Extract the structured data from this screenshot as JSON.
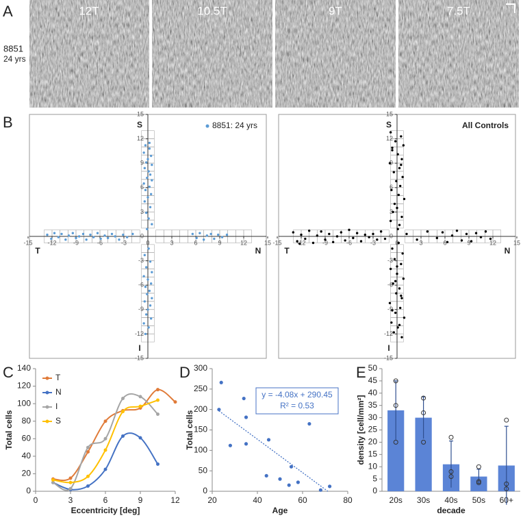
{
  "figure": {
    "panel_labels": [
      "A",
      "B",
      "C",
      "D",
      "E"
    ],
    "images": {
      "labels": [
        "12T",
        "10.5T",
        "9T",
        "7.5T"
      ],
      "subject": "8851",
      "age": "24 yrs"
    }
  },
  "chart_data": [
    {
      "type": "scatter",
      "axis_style": "cross",
      "compass": {
        "top": "S",
        "bottom": "I",
        "left": "T",
        "right": "N"
      },
      "xlim": [
        -15,
        15
      ],
      "ylim": [
        -15,
        15
      ],
      "xticks": [
        -15,
        -12,
        -9,
        -6,
        -3,
        0,
        3,
        6,
        9,
        12,
        15
      ],
      "yticks": [
        15,
        12,
        9,
        6,
        3,
        0,
        -3,
        -6,
        -9,
        -12,
        -15
      ],
      "series": [
        {
          "name": "8851: 24 yrs",
          "color": "#5b9bd5",
          "x": [
            -0.3,
            0.2,
            -0.5,
            0.4,
            0.0,
            -0.2,
            0.5,
            -0.4,
            0.1,
            0.3,
            -0.1,
            0.5,
            -0.5,
            0.2,
            -0.3,
            0.4,
            0.0,
            -0.4,
            0.3,
            -0.2,
            0.1,
            0.5,
            -0.1,
            0.2,
            0.1,
            -0.4,
            0.3,
            -0.2,
            0.5,
            -0.5,
            0.0,
            0.4,
            -0.3,
            0.2,
            -0.1,
            0.5,
            -0.4,
            0.3,
            0.0,
            -0.2,
            0.4,
            -0.5,
            0.1,
            -0.3,
            -12.6,
            -12.1,
            -11.7,
            -11.2,
            -10.8,
            -10.3,
            -9.9,
            -9.4,
            -9.0,
            -8.6,
            -8.1,
            -7.7,
            -7.2,
            -6.8,
            -6.3,
            -5.9,
            -5.4,
            -5.0,
            -4.5,
            -4.1,
            -3.6,
            -3.1,
            -2.6,
            -1.9,
            5.6,
            6.1,
            6.5,
            7.0,
            7.4,
            7.9,
            8.3,
            8.8,
            9.3,
            9.9
          ],
          "y": [
            11.2,
            10.8,
            10.3,
            9.9,
            9.5,
            9.1,
            8.8,
            8.4,
            8.0,
            7.6,
            7.2,
            6.9,
            6.5,
            6.1,
            5.7,
            5.2,
            4.8,
            4.3,
            3.6,
            2.9,
            2.2,
            1.5,
            0.9,
            11.5,
            -1.5,
            -2.3,
            -3.1,
            -3.8,
            -4.4,
            -4.9,
            -5.3,
            -5.8,
            -6.2,
            -6.7,
            -7.1,
            -7.6,
            -8.0,
            -8.5,
            -9.0,
            -9.6,
            -10.1,
            -10.7,
            -11.2,
            -12.0,
            0.2,
            -0.3,
            0.4,
            -0.1,
            0.3,
            -0.4,
            0.1,
            0.4,
            -0.2,
            0.0,
            0.3,
            -0.4,
            0.2,
            -0.1,
            0.4,
            -0.3,
            0.1,
            -0.2,
            0.3,
            0.0,
            -0.4,
            0.2,
            -0.1,
            0.3,
            0.3,
            -0.2,
            0.4,
            -0.4,
            0.1,
            0.3,
            -0.3,
            0.2,
            -0.1,
            0.2
          ]
        }
      ]
    },
    {
      "type": "scatter",
      "axis_style": "cross",
      "title": "All Controls",
      "compass": {
        "top": "S",
        "bottom": "I",
        "left": "T",
        "right": "N"
      },
      "xlim": [
        -15,
        15
      ],
      "ylim": [
        -15,
        15
      ],
      "xticks": [
        -15,
        -12,
        -9,
        -6,
        -3,
        0,
        3,
        6,
        9,
        12,
        15
      ],
      "yticks": [
        15,
        12,
        9,
        6,
        3,
        0,
        -3,
        -6,
        -9,
        -12,
        -15
      ],
      "series": [
        {
          "color": "#000000",
          "x": [
            -0.8,
            0.5,
            -0.2,
            0.8,
            -0.6,
            0.1,
            0.6,
            -0.9,
            0.3,
            -0.4,
            0.7,
            -0.1,
            0.4,
            -0.7,
            0.2,
            0.9,
            -0.3,
            0.0,
            -0.5,
            0.6,
            -0.8,
            0.3,
            0.1,
            -0.6,
            0.5,
            0.2,
            -0.6,
            0.7,
            -0.3,
            0.5,
            -0.8,
            0.0,
            0.8,
            -0.5,
            0.3,
            -0.1,
            0.6,
            -0.9,
            0.4,
            -0.2,
            0.9,
            -0.7,
            0.1,
            -0.4,
            0.6,
            -0.2,
            0.5,
            -0.6,
            0.3,
            0.0,
            -13.0,
            -12.5,
            -12.0,
            -11.5,
            -11.0,
            -10.5,
            -10.0,
            -9.5,
            -9.0,
            -8.5,
            -8.0,
            -7.5,
            -7.0,
            -6.5,
            -6.0,
            -5.5,
            -5.0,
            -4.5,
            -4.0,
            -3.5,
            -3.0,
            -2.5,
            -2.0,
            -1.5,
            -12.2,
            1.2,
            2.5,
            3.8,
            5.0,
            5.7,
            6.3,
            6.9,
            7.5,
            8.1,
            8.7,
            9.3,
            9.9,
            10.5,
            11.1,
            11.7
          ],
          "y": [
            12.8,
            12.3,
            11.7,
            11.2,
            10.6,
            10.1,
            9.5,
            9.0,
            8.4,
            7.9,
            7.3,
            6.8,
            6.2,
            5.7,
            5.1,
            4.6,
            4.0,
            3.5,
            3.0,
            2.4,
            1.9,
            1.4,
            0.9,
            10.9,
            8.8,
            -0.8,
            -1.5,
            -2.1,
            -2.8,
            -3.4,
            -4.0,
            -4.6,
            -5.2,
            -5.8,
            -6.4,
            -7.0,
            -7.6,
            -8.2,
            -8.8,
            -9.4,
            -10.0,
            -10.6,
            -11.2,
            -11.8,
            -12.4,
            -5.5,
            -7.3,
            -9.1,
            -10.9,
            -3.7,
            0.5,
            -0.6,
            0.2,
            -0.3,
            0.7,
            -0.8,
            0.1,
            0.6,
            -0.4,
            0.3,
            -0.7,
            0.0,
            0.5,
            -0.5,
            0.8,
            -0.2,
            0.4,
            -0.6,
            0.2,
            -0.1,
            0.3,
            -0.4,
            0.6,
            -0.3,
            -0.9,
            0.3,
            -0.4,
            0.6,
            -0.2,
            0.5,
            -0.7,
            0.1,
            0.7,
            -0.5,
            0.3,
            -0.6,
            0.4,
            -0.1,
            0.6,
            -0.3
          ]
        }
      ]
    },
    {
      "type": "line",
      "x_label": "Eccentricity [deg]",
      "y_label": "Total cells",
      "x": [
        1.5,
        3,
        4.5,
        6,
        7.5,
        9,
        10.5,
        12
      ],
      "xlim": [
        0,
        12
      ],
      "ylim": [
        0,
        140
      ],
      "xticks": [
        0,
        3,
        6,
        9,
        12
      ],
      "yticks": [
        0,
        20,
        40,
        60,
        80,
        100,
        120,
        140
      ],
      "series": [
        {
          "name": "T",
          "color": "#e07b39",
          "values": [
            14,
            15,
            45,
            80,
            92,
            95,
            116,
            102
          ]
        },
        {
          "name": "N",
          "color": "#4472c4",
          "values": [
            10,
            2,
            6,
            25,
            63,
            61,
            31,
            null
          ]
        },
        {
          "name": "I",
          "color": "#a5a5a5",
          "values": [
            10,
            3,
            50,
            60,
            106,
            108,
            88,
            null
          ]
        },
        {
          "name": "S",
          "color": "#ffc000",
          "values": [
            13,
            10,
            17,
            47,
            91,
            97,
            104,
            null
          ]
        }
      ]
    },
    {
      "type": "scatter",
      "axis_style": "box",
      "x_label": "Age",
      "y_label": "Total cells",
      "xlim": [
        20,
        80
      ],
      "ylim": [
        0,
        300
      ],
      "xticks": [
        20,
        40,
        60,
        80
      ],
      "yticks": [
        0,
        50,
        100,
        150,
        200,
        250,
        300
      ],
      "series": [
        {
          "color": "#4472c4",
          "x": [
            23,
            24,
            28,
            34,
            35,
            35,
            44,
            45,
            50,
            54,
            55,
            58,
            63,
            68,
            72
          ],
          "y": [
            200,
            266,
            112,
            227,
            181,
            116,
            38,
            126,
            30,
            15,
            60,
            22,
            165,
            3,
            12
          ]
        }
      ],
      "trendline": {
        "slope": -4.08,
        "intercept": 290.45,
        "label": "y = -4.08x + 290.45",
        "r2_label": "R² = 0.53",
        "color": "#4472c4"
      }
    },
    {
      "type": "bar",
      "x_label": "decade",
      "y_label": "density [cell/mm²]",
      "color": "#5b84d6",
      "categories": [
        "20s",
        "30s",
        "40s",
        "50s",
        "60+"
      ],
      "values": [
        33,
        30,
        11,
        6,
        10.5
      ],
      "errors": [
        12,
        8.5,
        9.5,
        3,
        16
      ],
      "points": [
        [
          45,
          35,
          20
        ],
        [
          38,
          32,
          20
        ],
        [
          22,
          8,
          6
        ],
        [
          10,
          4,
          3.5
        ],
        [
          29,
          3,
          1
        ]
      ],
      "ylim": [
        0,
        50
      ],
      "yticks": [
        0,
        5,
        10,
        15,
        20,
        25,
        30,
        35,
        40,
        45,
        50
      ]
    }
  ]
}
